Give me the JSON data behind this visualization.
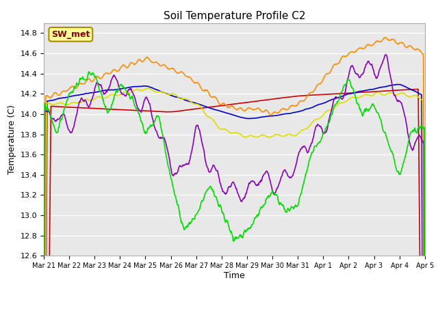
{
  "title": "Soil Temperature Profile C2",
  "xlabel": "Time",
  "ylabel": "Temperature (C)",
  "ylim": [
    12.6,
    14.9
  ],
  "background_color": "#ffffff",
  "plot_bg_color": "#e8e8e8",
  "grid_color": "#ffffff",
  "series": {
    "-32cm": {
      "color": "#cc0000",
      "linewidth": 1.2
    },
    "-8cm": {
      "color": "#0000cc",
      "linewidth": 1.2
    },
    "-2cm": {
      "color": "#00dd00",
      "linewidth": 1.2
    },
    "TC_temp15": {
      "color": "#ff8c00",
      "linewidth": 1.2
    },
    "TC_temp16": {
      "color": "#dddd00",
      "linewidth": 1.2
    },
    "TC_temp17": {
      "color": "#8800bb",
      "linewidth": 1.2
    }
  },
  "xtick_labels": [
    "Mar 21",
    "Mar 22",
    "Mar 23",
    "Mar 24",
    "Mar 25",
    "Mar 26",
    "Mar 27",
    "Mar 28",
    "Mar 29",
    "Mar 30",
    "Mar 31",
    "Apr 1",
    "Apr 2",
    "Apr 3",
    "Apr 4",
    "Apr 5"
  ],
  "legend_label": "SW_met",
  "legend_bg": "#ffff99",
  "legend_border": "#aa8800"
}
